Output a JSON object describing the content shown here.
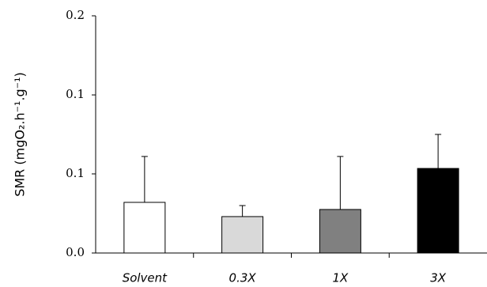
{
  "chart_data": {
    "type": "bar",
    "y_label": "SMR (mgO₂.h⁻¹.g⁻¹)",
    "categories": [
      "Solvent",
      "0.3X",
      "1X",
      "3X"
    ],
    "values": [
      0.0427,
      0.0307,
      0.0367,
      0.0713
    ],
    "errors": [
      0.0387,
      0.0093,
      0.0447,
      0.0287
    ],
    "colors": [
      "#ffffff",
      "#d9d9d9",
      "#808080",
      "#000000"
    ],
    "ylim": [
      0,
      0.2
    ],
    "yticks": [
      {
        "value": 0,
        "label": "0.0"
      },
      {
        "value": 0.0667,
        "label": "0.1"
      },
      {
        "value": 0.1333,
        "label": "0.1"
      },
      0.2
    ],
    "grid": false
  }
}
